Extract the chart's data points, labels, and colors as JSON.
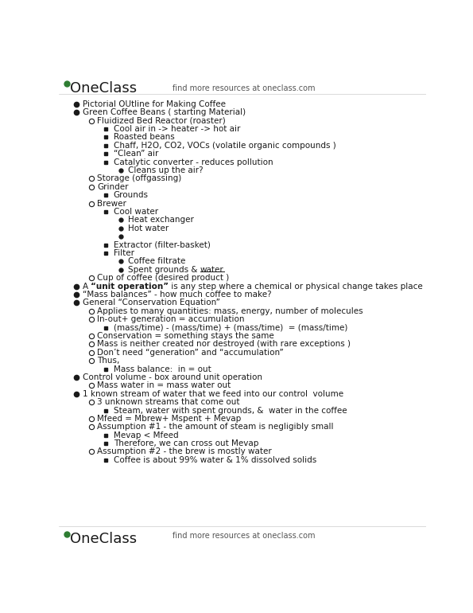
{
  "bg_color": "#ffffff",
  "header_text": "find more resources at oneclass.com",
  "footer_text": "find more resources at oneclass.com",
  "font_color": "#1a1a1a",
  "font_size": 7.5,
  "logo_color": "#2e7d32",
  "lines": [
    {
      "level": 0,
      "bullet": "filled_circle",
      "text": "Pictorial OUtline for Making Coffee"
    },
    {
      "level": 0,
      "bullet": "filled_circle",
      "text": "Green Coffee Beans ( starting Material)"
    },
    {
      "level": 1,
      "bullet": "open_circle",
      "text": "Fluidized Bed Reactor (roaster)"
    },
    {
      "level": 2,
      "bullet": "filled_square",
      "text": "Cool air in -> heater -> hot air"
    },
    {
      "level": 2,
      "bullet": "filled_square",
      "text": "Roasted beans"
    },
    {
      "level": 2,
      "bullet": "filled_square",
      "text": "Chaff, H2O, CO2, VOCs (volatile organic compounds )"
    },
    {
      "level": 2,
      "bullet": "filled_square",
      "text": "“Clean” air"
    },
    {
      "level": 2,
      "bullet": "filled_square",
      "text": "Catalytic converter - reduces pollution"
    },
    {
      "level": 3,
      "bullet": "filled_circle_sm",
      "text": "Cleans up the air?"
    },
    {
      "level": 1,
      "bullet": "open_circle",
      "text": "Storage (offgassing)"
    },
    {
      "level": 1,
      "bullet": "open_circle",
      "text": "Grinder"
    },
    {
      "level": 2,
      "bullet": "filled_square",
      "text": "Grounds"
    },
    {
      "level": 1,
      "bullet": "open_circle",
      "text": "Brewer"
    },
    {
      "level": 2,
      "bullet": "filled_square",
      "text": "Cool water"
    },
    {
      "level": 3,
      "bullet": "filled_circle_sm",
      "text": "Heat exchanger"
    },
    {
      "level": 3,
      "bullet": "filled_circle_sm",
      "text": "Hot water"
    },
    {
      "level": 3,
      "bullet": "filled_circle_sm",
      "text": ""
    },
    {
      "level": 2,
      "bullet": "filled_square",
      "text": "Extractor (filter-basket)"
    },
    {
      "level": 2,
      "bullet": "filled_square",
      "text": "Filter"
    },
    {
      "level": 3,
      "bullet": "filled_circle_sm",
      "text": "Coffee filtrate"
    },
    {
      "level": 3,
      "bullet": "filled_circle_sm",
      "text": "Spent grounds & water",
      "underline_word": "water"
    },
    {
      "level": 1,
      "bullet": "open_circle",
      "text": "Cup of coffee (desired product )"
    },
    {
      "level": 0,
      "bullet": "filled_circle",
      "text": "A “unit operation” is any step where a chemical or physical change takes place",
      "bold_part": "“unit operation”"
    },
    {
      "level": 0,
      "bullet": "filled_circle",
      "text": "“Mass balances” - how much coffee to make?"
    },
    {
      "level": 0,
      "bullet": "filled_circle",
      "text": "General “Conservation Equation”"
    },
    {
      "level": 1,
      "bullet": "open_circle",
      "text": "Applies to many quantities: mass, energy, number of molecules"
    },
    {
      "level": 1,
      "bullet": "open_circle",
      "text": "In-out+ generation = accumulation"
    },
    {
      "level": 2,
      "bullet": "filled_square",
      "text": "(mass/time) - (mass/time) + (mass/time)  = (mass/time)"
    },
    {
      "level": 1,
      "bullet": "open_circle",
      "text": "Conservation = something stays the same"
    },
    {
      "level": 1,
      "bullet": "open_circle",
      "text": "Mass is neither created nor destroyed (with rare exceptions )"
    },
    {
      "level": 1,
      "bullet": "open_circle",
      "text": "Don’t need “generation” and “accumulation”"
    },
    {
      "level": 1,
      "bullet": "open_circle",
      "text": "Thus,"
    },
    {
      "level": 2,
      "bullet": "filled_square",
      "text": "Mass balance:  in = out"
    },
    {
      "level": 0,
      "bullet": "filled_circle",
      "text": "Control volume - box around unit operation"
    },
    {
      "level": 1,
      "bullet": "open_circle",
      "text": "Mass water in = mass water out"
    },
    {
      "level": 0,
      "bullet": "filled_circle",
      "text": "1 known stream of water that we feed into our control  volume"
    },
    {
      "level": 1,
      "bullet": "open_circle",
      "text": "3 unknown streams that come out"
    },
    {
      "level": 2,
      "bullet": "filled_square",
      "text": "Steam, water with spent grounds, &  water in the coffee"
    },
    {
      "level": 1,
      "bullet": "open_circle",
      "text": "Mfeed = Mbrew+ Mspent + Mevap"
    },
    {
      "level": 1,
      "bullet": "open_circle",
      "text": "Assumption #1 - the amount of steam is negligibly small"
    },
    {
      "level": 2,
      "bullet": "filled_square",
      "text": "Mevap < Mfeed"
    },
    {
      "level": 2,
      "bullet": "filled_square",
      "text": "Therefore, we can cross out Mevap"
    },
    {
      "level": 1,
      "bullet": "open_circle",
      "text": "Assumption #2 - the brew is mostly water"
    },
    {
      "level": 2,
      "bullet": "filled_square",
      "text": "Coffee is about 99% water & 1% dissolved solids"
    }
  ]
}
